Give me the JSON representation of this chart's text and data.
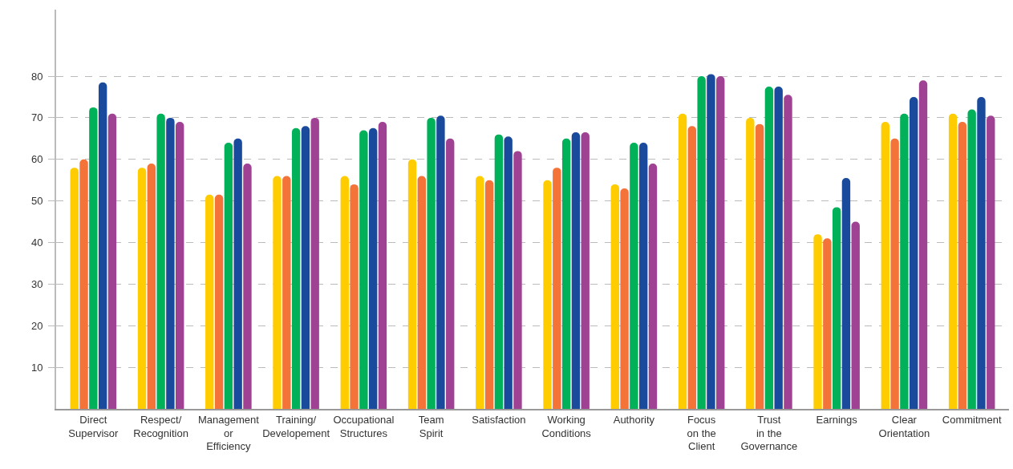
{
  "chart_data": {
    "type": "bar",
    "categories": [
      "Direct\nSupervisor",
      "Respect/\nRecognition",
      "Management\nor\nEfficiency",
      "Training/\nDevelopement",
      "Occupational\nStructures",
      "Team\nSpirit",
      "Satisfaction",
      "Working\nConditions",
      "Authority",
      "Focus\non the\nClient",
      "Trust\nin the\nGovernance",
      "Earnings",
      "Clear\nOrientation",
      "Commitment"
    ],
    "series": [
      {
        "color": "#ffcc00",
        "values": [
          58,
          58,
          51.5,
          56,
          56,
          60,
          56,
          55,
          54,
          71,
          70,
          42,
          69,
          71
        ]
      },
      {
        "color": "#f37338",
        "values": [
          60,
          59,
          51.5,
          56,
          54,
          56,
          55,
          58,
          53,
          68,
          68.5,
          41,
          65,
          69
        ]
      },
      {
        "color": "#00b15a",
        "values": [
          72.5,
          71,
          64,
          67.5,
          67,
          70,
          66,
          65,
          64,
          80,
          77.5,
          48.5,
          71,
          72
        ]
      },
      {
        "color": "#1a4a9c",
        "values": [
          78.5,
          70,
          65,
          68,
          67.5,
          70.5,
          65.5,
          66.5,
          64,
          80.5,
          77.5,
          55.5,
          75,
          75
        ]
      },
      {
        "color": "#a04293",
        "values": [
          71,
          69,
          59,
          70,
          69,
          65,
          62,
          66.5,
          59,
          80,
          75.5,
          45,
          79,
          70.5
        ]
      }
    ],
    "ylim": [
      0,
      96
    ],
    "yticks": [
      10,
      20,
      30,
      40,
      50,
      60,
      70,
      80
    ],
    "grid": "y"
  }
}
